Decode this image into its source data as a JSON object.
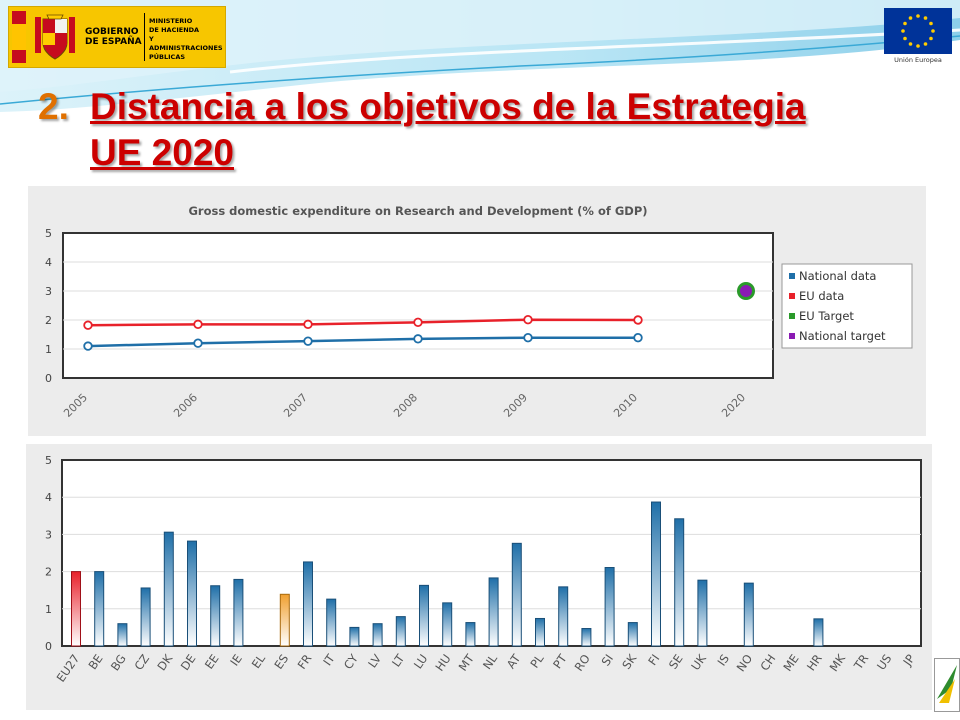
{
  "header": {
    "gobierno_line1": "GOBIERNO",
    "gobierno_line2": "DE ESPAÑA",
    "ministry_line1": "MINISTERIO",
    "ministry_line2": "DE HACIENDA",
    "ministry_line3": "Y ADMINISTRACIONES",
    "ministry_line4": "PÚBLICAS",
    "eu_caption": "Unión Europea"
  },
  "slide": {
    "number": "2.",
    "title_line1": "Distancia a los objetivos de la Estrategia",
    "title_line2": "UE 2020"
  },
  "colors": {
    "title": "#cc0000",
    "number": "#e07000",
    "national": "#1f6fa8",
    "eu": "#e8212a",
    "eu_target": "#2a9a2a",
    "national_target": "#8a1ab3",
    "bar_eu27": "#e8212a",
    "bar_es": "#f0a030",
    "bar_default": "#1f6fa8"
  },
  "chart_data": [
    {
      "type": "line",
      "title": "Gross domestic expenditure on Research and Development (% of GDP)",
      "categories": [
        "2005",
        "2006",
        "2007",
        "2008",
        "2009",
        "2010",
        "2020"
      ],
      "ylim": [
        0,
        5
      ],
      "yticks": [
        "0",
        "1",
        "2",
        "3",
        "4",
        "5"
      ],
      "grid": true,
      "legend_position": "right",
      "series": [
        {
          "name": "National data",
          "values": [
            1.1,
            1.2,
            1.27,
            1.35,
            1.39,
            1.39,
            null
          ]
        },
        {
          "name": "EU data",
          "values": [
            1.82,
            1.85,
            1.85,
            1.92,
            2.01,
            2.0,
            null
          ]
        },
        {
          "name": "EU Target",
          "values": [
            null,
            null,
            null,
            null,
            null,
            null,
            3.0
          ]
        },
        {
          "name": "National target",
          "values": [
            null,
            null,
            null,
            null,
            null,
            null,
            3.0
          ]
        }
      ]
    },
    {
      "type": "bar",
      "categories": [
        "EU27",
        "BE",
        "BG",
        "CZ",
        "DK",
        "DE",
        "EE",
        "IE",
        "EL",
        "ES",
        "FR",
        "IT",
        "CY",
        "LV",
        "LT",
        "LU",
        "HU",
        "MT",
        "NL",
        "AT",
        "PL",
        "PT",
        "RO",
        "SI",
        "SK",
        "FI",
        "SE",
        "UK",
        "IS",
        "NO",
        "CH",
        "ME",
        "HR",
        "MK",
        "TR",
        "US",
        "JP"
      ],
      "values": [
        2.0,
        2.0,
        0.6,
        1.56,
        3.06,
        2.82,
        1.62,
        1.79,
        null,
        1.39,
        2.26,
        1.26,
        0.5,
        0.6,
        0.79,
        1.63,
        1.16,
        0.63,
        1.83,
        2.76,
        0.74,
        1.59,
        0.47,
        2.11,
        0.63,
        3.87,
        3.42,
        1.77,
        null,
        1.69,
        null,
        null,
        0.73,
        null,
        null,
        null,
        null
      ],
      "ylim": [
        0,
        5
      ],
      "yticks": [
        "0",
        "1",
        "2",
        "3",
        "4",
        "5"
      ],
      "grid": true
    }
  ]
}
